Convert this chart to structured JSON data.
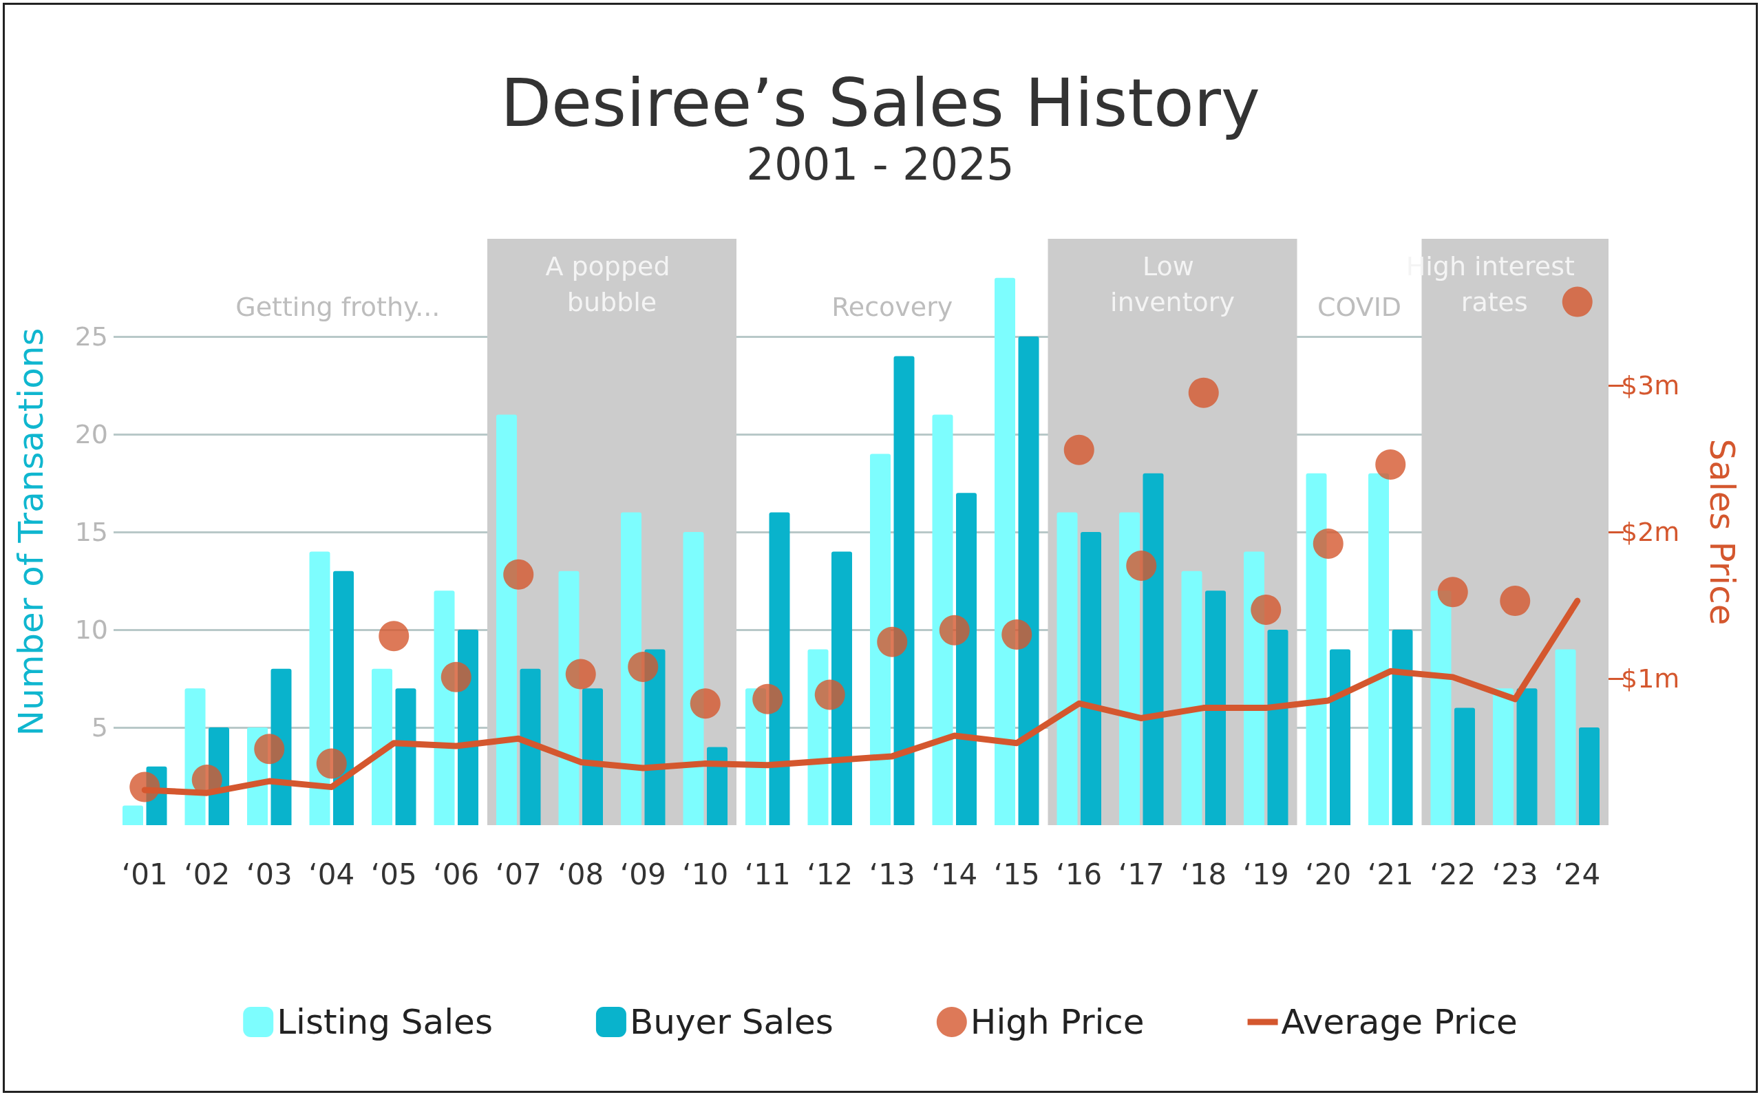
{
  "chart_data": {
    "type": "bar",
    "title": "Desiree’s Sales History",
    "subtitle": "2001 - 2025",
    "ylabel": "Number of Transactions",
    "y2label": "Sales Price",
    "categories": [
      "‘01",
      "‘02",
      "‘03",
      "‘04",
      "‘05",
      "‘06",
      "‘07",
      "‘08",
      "‘09",
      "‘10",
      "‘11",
      "‘12",
      "‘13",
      "‘14",
      "‘15",
      "‘16",
      "‘17",
      "‘18",
      "‘19",
      "‘20",
      "‘21",
      "‘22",
      "‘23",
      "‘24"
    ],
    "series": [
      {
        "name": "Listing Sales",
        "color": "#7dfdfe",
        "values": [
          1,
          7,
          5,
          14,
          8,
          12,
          21,
          13,
          16,
          15,
          7,
          9,
          19,
          21,
          28,
          16,
          16,
          13,
          14,
          18,
          18,
          12,
          7,
          9
        ]
      },
      {
        "name": "Buyer Sales",
        "color": "#09b3cc",
        "values": [
          3,
          5,
          8,
          13,
          7,
          10,
          8,
          7,
          9,
          4,
          16,
          14,
          24,
          17,
          25,
          15,
          18,
          12,
          10,
          9,
          10,
          6,
          7,
          5
        ]
      },
      {
        "name": "High Price",
        "type": "scatter",
        "axis": "y2",
        "marker": "circle",
        "color": "#d4572e",
        "values": [
          0.26,
          0.31,
          0.52,
          0.42,
          1.29,
          1.01,
          1.71,
          1.03,
          1.08,
          0.83,
          0.86,
          0.89,
          1.25,
          1.33,
          1.3,
          2.56,
          1.77,
          2.95,
          1.47,
          1.92,
          2.46,
          1.59,
          1.53,
          3.57
        ]
      },
      {
        "name": "Average Price",
        "type": "line",
        "axis": "y2",
        "marker": "none",
        "line_style": "solid",
        "color": "#d4572e",
        "values": [
          0.24,
          0.22,
          0.3,
          0.26,
          0.56,
          0.54,
          0.59,
          0.43,
          0.39,
          0.42,
          0.41,
          0.44,
          0.47,
          0.61,
          0.56,
          0.83,
          0.73,
          0.8,
          0.8,
          0.85,
          1.05,
          1.01,
          0.86,
          1.53
        ]
      }
    ],
    "ylim": [
      0,
      30
    ],
    "yticks": [
      5,
      10,
      15,
      20,
      25
    ],
    "y2lim": [
      0,
      4
    ],
    "y2ticks": [
      {
        "value": 1,
        "label": "$1m"
      },
      {
        "value": 2,
        "label": "$2m"
      },
      {
        "value": 3,
        "label": "$3m"
      }
    ],
    "bands": [
      {
        "axis": "x",
        "from": "‘07",
        "to": "‘10",
        "label": "A popped bubble",
        "color": "#cccccc"
      },
      {
        "axis": "x",
        "from": "‘16",
        "to": "‘19",
        "label": "Low inventory",
        "color": "#cccccc"
      },
      {
        "axis": "x",
        "from": "‘22",
        "to": "‘24",
        "label": "High interest rates",
        "color": "#cccccc"
      }
    ],
    "annotations": [
      "Getting frothy...",
      "Recovery",
      "COVID"
    ],
    "grid": "y",
    "legend": "bottom"
  }
}
